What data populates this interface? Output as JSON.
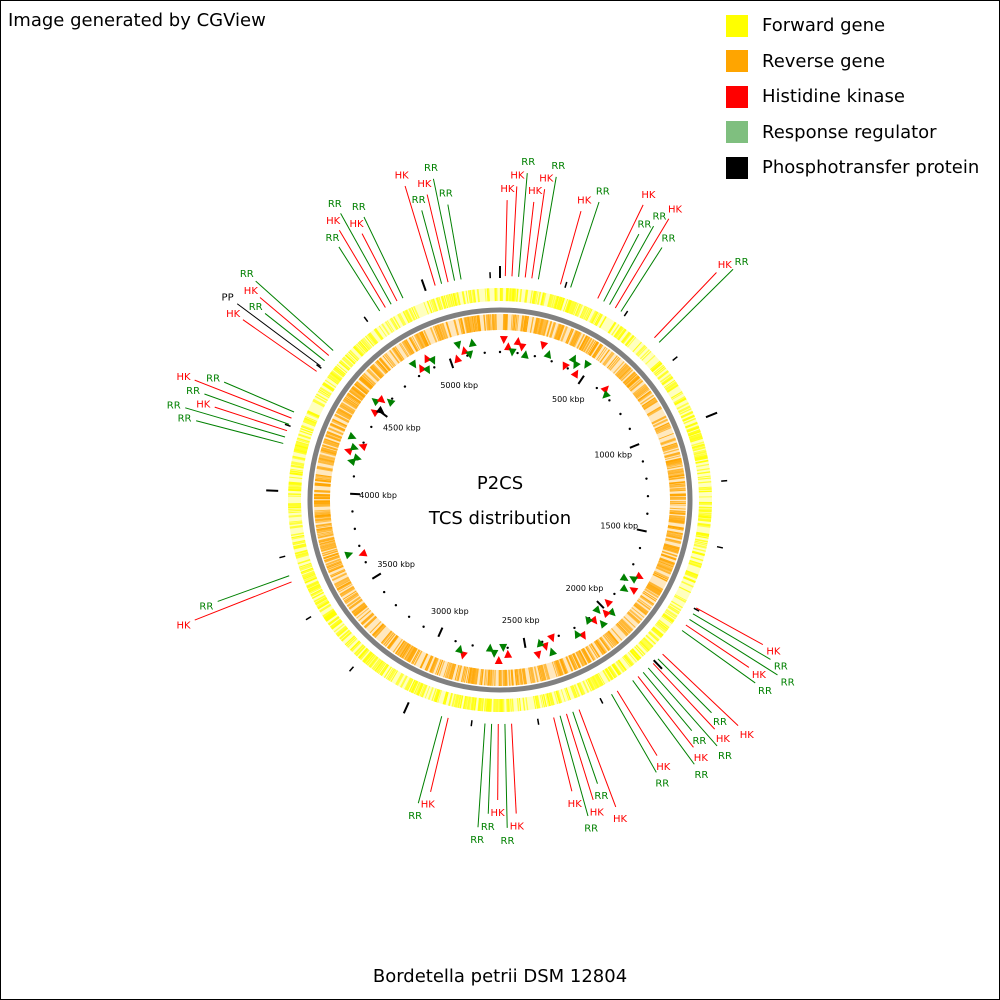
{
  "credit": "Image generated by CGView",
  "legend": [
    {
      "label": "Forward gene",
      "color": "#ffff00"
    },
    {
      "label": "Reverse gene",
      "color": "#ffa500"
    },
    {
      "label": "Histidine kinase",
      "color": "#ff0000"
    },
    {
      "label": "Response regulator",
      "color": "#7fbf7f"
    },
    {
      "label": "Phosphotransfer protein",
      "color": "#000000"
    }
  ],
  "map": {
    "title": "P2CS",
    "subtitle": "TCS distribution",
    "organism": "Bordetella petrii DSM 12804",
    "genome_kbp": 5287,
    "colors": {
      "hk": "#ff0000",
      "rr": "#008000",
      "pp": "#000000",
      "forward": "#ffff00",
      "reverse": "#ffa500",
      "backbone": "#808080"
    },
    "tick_labels": [
      "500 kbp",
      "1000 kbp",
      "1500 kbp",
      "2000 kbp",
      "2500 kbp",
      "3000 kbp",
      "3500 kbp",
      "4000 kbp",
      "4500 kbp",
      "5000 kbp"
    ],
    "features": [
      {
        "kbp": 20,
        "type": "HK"
      },
      {
        "kbp": 45,
        "type": "HK"
      },
      {
        "kbp": 70,
        "type": "RR"
      },
      {
        "kbp": 95,
        "type": "HK"
      },
      {
        "kbp": 120,
        "type": "HK"
      },
      {
        "kbp": 145,
        "type": "RR"
      },
      {
        "kbp": 230,
        "type": "HK"
      },
      {
        "kbp": 270,
        "type": "RR"
      },
      {
        "kbp": 380,
        "type": "HK"
      },
      {
        "kbp": 405,
        "type": "RR"
      },
      {
        "kbp": 430,
        "type": "RR"
      },
      {
        "kbp": 455,
        "type": "HK"
      },
      {
        "kbp": 480,
        "type": "RR"
      },
      {
        "kbp": 640,
        "type": "HK"
      },
      {
        "kbp": 665,
        "type": "RR"
      },
      {
        "kbp": 1745,
        "type": "HK"
      },
      {
        "kbp": 1770,
        "type": "RR"
      },
      {
        "kbp": 1795,
        "type": "RR"
      },
      {
        "kbp": 1820,
        "type": "HK"
      },
      {
        "kbp": 1845,
        "type": "RR"
      },
      {
        "kbp": 1960,
        "type": "HK"
      },
      {
        "kbp": 1985,
        "type": "RR"
      },
      {
        "kbp": 2010,
        "type": "HK"
      },
      {
        "kbp": 2035,
        "type": "RR"
      },
      {
        "kbp": 2060,
        "type": "RR"
      },
      {
        "kbp": 2085,
        "type": "HK"
      },
      {
        "kbp": 2110,
        "type": "RR"
      },
      {
        "kbp": 2180,
        "type": "HK"
      },
      {
        "kbp": 2205,
        "type": "RR"
      },
      {
        "kbp": 2340,
        "type": "HK"
      },
      {
        "kbp": 2365,
        "type": "RR"
      },
      {
        "kbp": 2390,
        "type": "HK"
      },
      {
        "kbp": 2415,
        "type": "RR"
      },
      {
        "kbp": 2440,
        "type": "HK"
      },
      {
        "kbp": 2600,
        "type": "HK"
      },
      {
        "kbp": 2625,
        "type": "RR"
      },
      {
        "kbp": 2650,
        "type": "HK"
      },
      {
        "kbp": 2675,
        "type": "RR"
      },
      {
        "kbp": 2700,
        "type": "RR"
      },
      {
        "kbp": 2840,
        "type": "HK"
      },
      {
        "kbp": 2865,
        "type": "RR"
      },
      {
        "kbp": 3650,
        "type": "HK"
      },
      {
        "kbp": 3675,
        "type": "RR"
      },
      {
        "kbp": 4180,
        "type": "RR"
      },
      {
        "kbp": 4205,
        "type": "RR"
      },
      {
        "kbp": 4230,
        "type": "HK"
      },
      {
        "kbp": 4255,
        "type": "RR"
      },
      {
        "kbp": 4280,
        "type": "HK"
      },
      {
        "kbp": 4305,
        "type": "RR"
      },
      {
        "kbp": 4480,
        "type": "HK"
      },
      {
        "kbp": 4505,
        "type": "PP"
      },
      {
        "kbp": 4530,
        "type": "RR"
      },
      {
        "kbp": 4555,
        "type": "HK"
      },
      {
        "kbp": 4580,
        "type": "RR"
      },
      {
        "kbp": 4810,
        "type": "RR"
      },
      {
        "kbp": 4835,
        "type": "HK"
      },
      {
        "kbp": 4860,
        "type": "RR"
      },
      {
        "kbp": 4885,
        "type": "HK"
      },
      {
        "kbp": 4910,
        "type": "RR"
      },
      {
        "kbp": 5040,
        "type": "HK"
      },
      {
        "kbp": 5065,
        "type": "RR"
      },
      {
        "kbp": 5090,
        "type": "HK"
      },
      {
        "kbp": 5115,
        "type": "RR"
      },
      {
        "kbp": 5140,
        "type": "RR"
      }
    ]
  }
}
